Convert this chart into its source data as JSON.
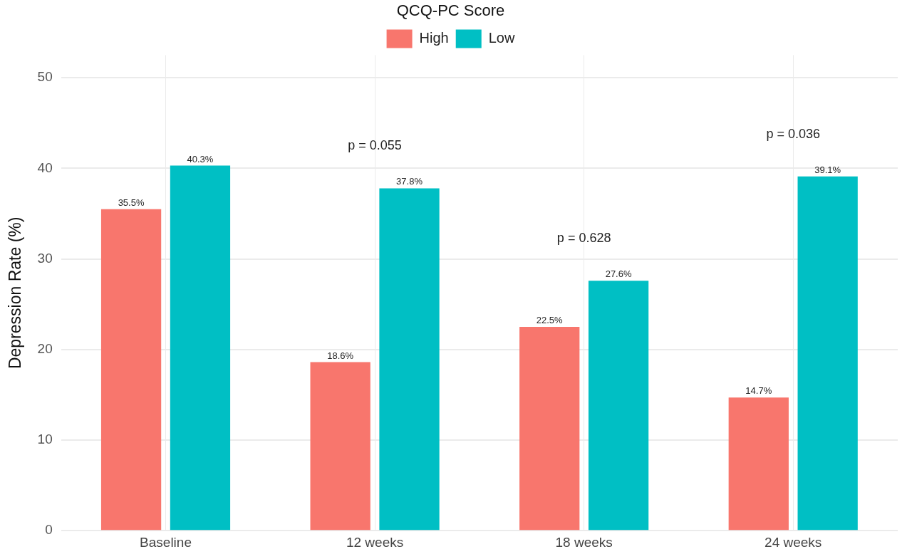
{
  "chart_data": {
    "type": "bar",
    "ylabel": "Depression Rate (%)",
    "legend_title": "QCQ-PC Score",
    "legend": "top",
    "categories": [
      "Baseline",
      "12 weeks",
      "18 weeks",
      "24 weeks"
    ],
    "series": [
      {
        "name": "High",
        "color": "#f8766d",
        "values": [
          35.5,
          18.6,
          22.5,
          14.7
        ],
        "value_labels": [
          "35.5%",
          "18.6%",
          "22.5%",
          "14.7%"
        ]
      },
      {
        "name": "Low",
        "color": "#00bfc4",
        "values": [
          40.3,
          37.8,
          27.6,
          39.1
        ],
        "value_labels": [
          "40.3%",
          "37.8%",
          "27.6%",
          "39.1%"
        ]
      }
    ],
    "ylim": [
      0,
      52.5
    ],
    "yticks": [
      0,
      10,
      20,
      30,
      40,
      50
    ],
    "grid": true,
    "annotations": [
      "p = 0.055",
      "p = 0.628",
      "p = 0.036"
    ]
  }
}
